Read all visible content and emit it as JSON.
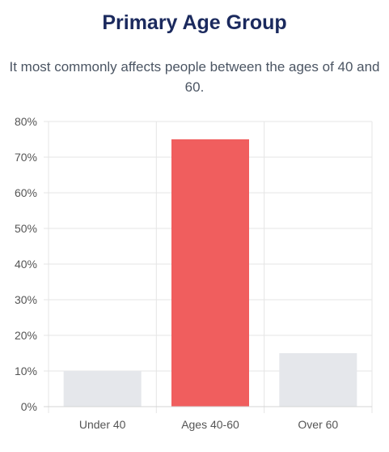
{
  "header": {
    "title": "Primary Age Group",
    "subtitle": "It most commonly affects people between the ages of 40 and 60."
  },
  "colors": {
    "highlight_bar": "#f05e5e",
    "default_bar": "#e5e7eb",
    "grid": "#e5e5e5",
    "title": "#1b2a5e"
  },
  "chart_data": {
    "type": "bar",
    "categories": [
      "Under 40",
      "Ages 40-60",
      "Over 60"
    ],
    "values": [
      10,
      75,
      15
    ],
    "highlight_index": 1,
    "ylim": [
      0,
      80
    ],
    "yticks": [
      0,
      10,
      20,
      30,
      40,
      50,
      60,
      70,
      80
    ],
    "ytick_labels": [
      "0%",
      "10%",
      "20%",
      "30%",
      "40%",
      "50%",
      "60%",
      "70%",
      "80%"
    ],
    "grid": true,
    "legend": "none",
    "title": "",
    "xlabel": "",
    "ylabel": ""
  }
}
